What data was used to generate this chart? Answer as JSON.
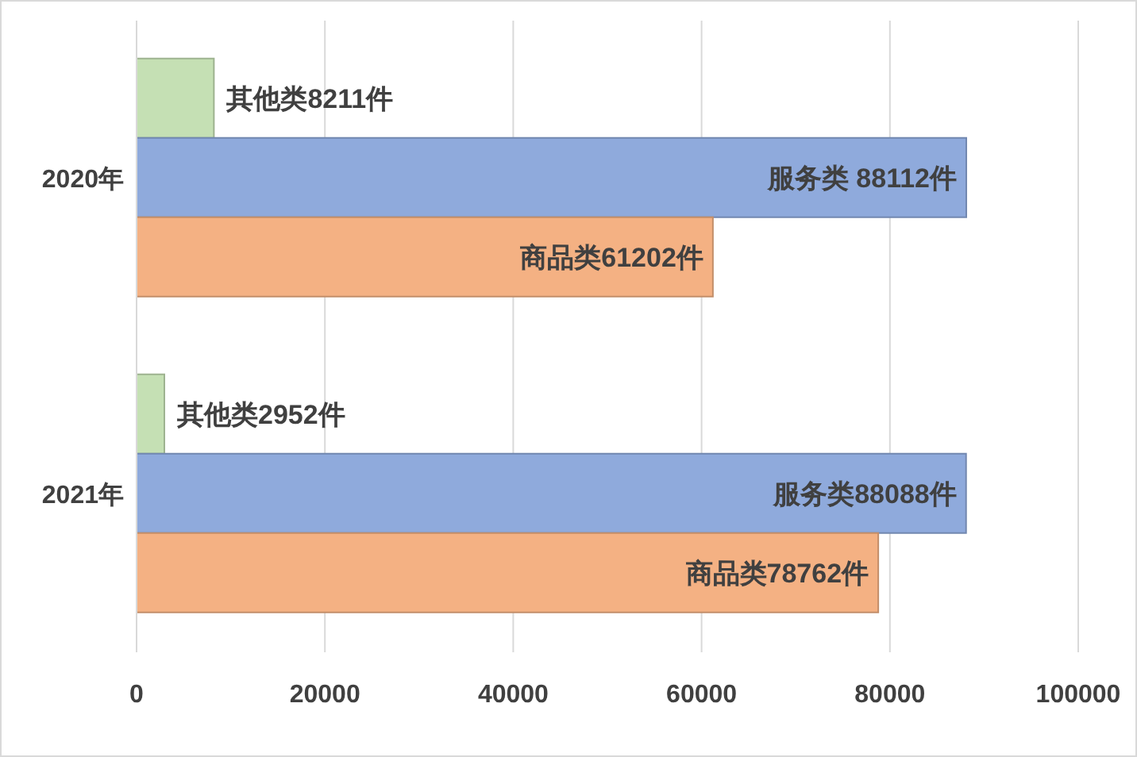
{
  "chart_data": {
    "type": "bar",
    "orientation": "horizontal",
    "categories": [
      "2020年",
      "2021年"
    ],
    "series": [
      {
        "color": "#c5e0b4",
        "values": [
          8211,
          2952
        ],
        "value_labels": [
          "其他类8211件",
          "其他类2952件"
        ]
      },
      {
        "color": "#8faadc",
        "values": [
          88112,
          88088
        ],
        "value_labels": [
          "服务类 88112件",
          "服务类88088件"
        ]
      },
      {
        "color": "#f4b183",
        "values": [
          61202,
          78762
        ],
        "value_labels": [
          "商品类61202件",
          "商品类78762件"
        ]
      }
    ],
    "xlim": [
      0,
      100000
    ],
    "xticks": [
      0,
      20000,
      40000,
      60000,
      80000,
      100000
    ],
    "grid": "x",
    "legend": false
  }
}
